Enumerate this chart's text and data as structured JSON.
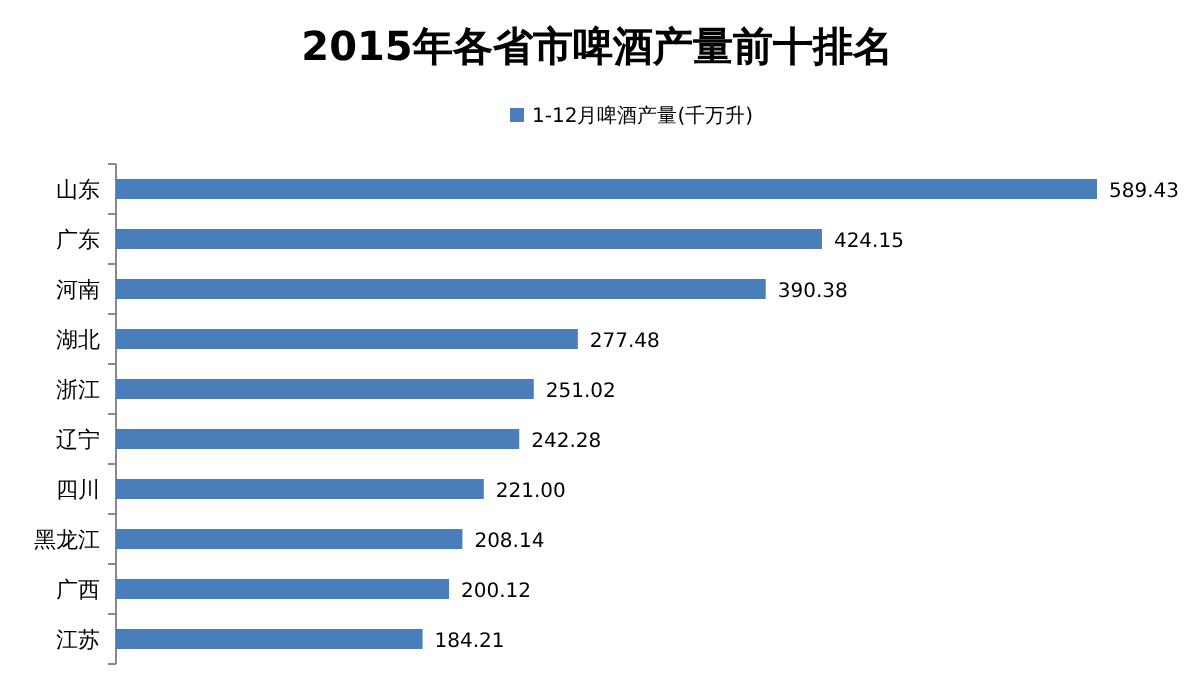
{
  "chart_data": {
    "type": "bar",
    "orientation": "horizontal",
    "title": "2015年各省市啤酒产量前十排名",
    "categories": [
      "山东",
      "广东",
      "河南",
      "湖北",
      "浙江",
      "辽宁",
      "四川",
      "黑龙江",
      "广西",
      "江苏"
    ],
    "series": [
      {
        "name": "1-12月啤酒产量(千万升)",
        "color": "#4a7ebb",
        "values": [
          589.43,
          424.15,
          390.38,
          277.48,
          251.02,
          242.28,
          221.0,
          208.14,
          200.12,
          184.21
        ],
        "value_labels": [
          "589.43",
          "424.15",
          "390.38",
          "277.48",
          "251.02",
          "242.28",
          "221.00",
          "208.14",
          "200.12",
          "184.21"
        ]
      }
    ],
    "legend": "top",
    "grid": false
  }
}
